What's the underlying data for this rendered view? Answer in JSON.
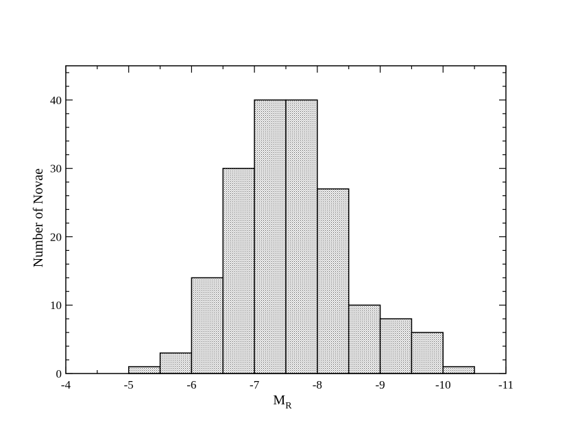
{
  "chart_data": {
    "type": "bar",
    "bin_edges": [
      -5,
      -5.5,
      -6,
      -6.5,
      -7,
      -7.5,
      -8,
      -8.5,
      -9,
      -9.5,
      -10,
      -10.5
    ],
    "values": [
      1,
      3,
      14,
      30,
      40,
      40,
      27,
      10,
      8,
      6,
      1
    ],
    "xlim": [
      -4,
      -11
    ],
    "ylim": [
      0,
      45
    ],
    "x_ticks": [
      -4,
      -5,
      -6,
      -7,
      -8,
      -9,
      -10,
      -11
    ],
    "y_ticks": [
      0,
      10,
      20,
      30,
      40
    ],
    "x_tick_labels": [
      "-4",
      "-5",
      "-6",
      "-7",
      "-8",
      "-9",
      "-10",
      "-11"
    ],
    "y_tick_labels": [
      "0",
      "10",
      "20",
      "30",
      "40"
    ],
    "xlabel_main": "M",
    "xlabel_sub": "R",
    "ylabel": "Number of Novae",
    "bar_fill": "#d9d9d9",
    "bar_edge": "#000000",
    "grid": false
  }
}
